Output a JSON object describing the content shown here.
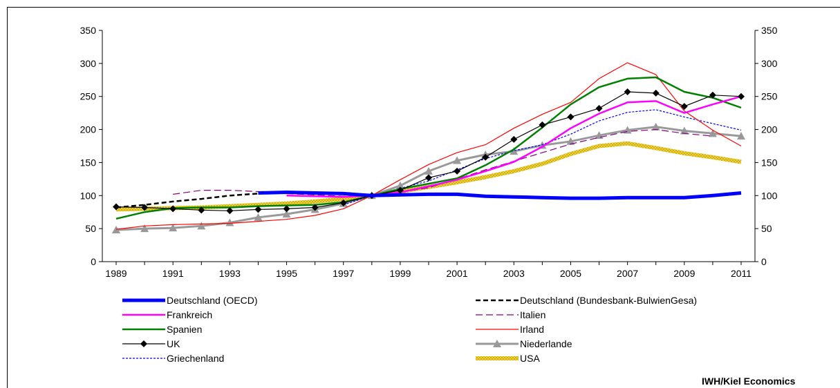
{
  "source": "IWH/Kiel Economics",
  "chart_data": {
    "type": "line",
    "title": "",
    "xlabel": "",
    "ylabel": "",
    "ylim": [
      0,
      350
    ],
    "yticks": [
      0,
      50,
      100,
      150,
      200,
      250,
      300,
      350
    ],
    "xlim": [
      1989,
      2011
    ],
    "xtick_labels": [
      "1989",
      "1991",
      "1993",
      "1995",
      "1997",
      "1999",
      "2001",
      "2003",
      "2005",
      "2007",
      "2009",
      "2011"
    ],
    "x": [
      1989,
      1990,
      1991,
      1992,
      1993,
      1994,
      1995,
      1996,
      1997,
      1998,
      1999,
      2000,
      2001,
      2002,
      2003,
      2004,
      2005,
      2006,
      2007,
      2008,
      2009,
      2010,
      2011
    ],
    "legend_position": "bottom",
    "series": [
      {
        "name": "Deutschland (OECD)",
        "color": "#0000ff",
        "style": "thick",
        "x": [
          1994,
          1995,
          1996,
          1997,
          1998,
          1999,
          2000,
          2001,
          2002,
          2003,
          2004,
          2005,
          2006,
          2007,
          2008,
          2009,
          2010,
          2011
        ],
        "values": [
          104,
          105,
          104,
          103,
          100,
          101,
          102,
          102,
          99,
          98,
          97,
          96,
          96,
          97,
          97,
          97,
          100,
          104
        ]
      },
      {
        "name": "Deutschland (Bundesbank-BulwienGesa)",
        "color": "#000000",
        "style": "dashed",
        "x": [
          1989,
          1990,
          1991,
          1992,
          1993,
          1994,
          1995,
          1996,
          1997,
          1998
        ],
        "values": [
          82,
          86,
          91,
          95,
          100,
          103,
          104,
          105,
          102,
          100
        ]
      },
      {
        "name": "Frankreich",
        "color": "#ff00ff",
        "style": "solid",
        "x": [
          1995,
          1996,
          1997,
          1998,
          1999,
          2000,
          2001,
          2002,
          2003,
          2004,
          2005,
          2006,
          2007,
          2008,
          2009,
          2010,
          2011
        ],
        "values": [
          100,
          99,
          98,
          100,
          105,
          114,
          124,
          137,
          151,
          174,
          202,
          224,
          241,
          243,
          225,
          238,
          250
        ]
      },
      {
        "name": "Italien",
        "color": "#800080",
        "style": "dashdot",
        "x": [
          1991,
          1992,
          1993,
          1994,
          1995,
          1996,
          1997,
          1998,
          1999,
          2000,
          2001,
          2002,
          2003,
          2004,
          2005,
          2006,
          2007,
          2008,
          2009,
          2010
        ],
        "values": [
          102,
          108,
          108,
          106,
          103,
          101,
          99,
          100,
          105,
          112,
          125,
          139,
          152,
          165,
          178,
          188,
          197,
          200,
          194,
          190
        ]
      },
      {
        "name": "Spanien",
        "color": "#008000",
        "style": "solid",
        "x": [
          1989,
          1990,
          1991,
          1992,
          1993,
          1994,
          1995,
          1996,
          1997,
          1998,
          1999,
          2000,
          2001,
          2002,
          2003,
          2004,
          2005,
          2006,
          2007,
          2008,
          2009,
          2010,
          2011
        ],
        "values": [
          65,
          75,
          81,
          82,
          82,
          84,
          85,
          86,
          90,
          100,
          110,
          118,
          126,
          146,
          170,
          203,
          238,
          264,
          277,
          279,
          257,
          248,
          233
        ]
      },
      {
        "name": "Irland",
        "color": "#ff0000",
        "style": "thin",
        "x": [
          1989,
          1990,
          1991,
          1992,
          1993,
          1994,
          1995,
          1996,
          1997,
          1998,
          1999,
          2000,
          2001,
          2002,
          2003,
          2004,
          2005,
          2006,
          2007,
          2008,
          2009,
          2010,
          2011
        ],
        "values": [
          49,
          54,
          56,
          57,
          58,
          61,
          64,
          70,
          80,
          100,
          124,
          147,
          165,
          177,
          202,
          223,
          241,
          277,
          301,
          283,
          228,
          199,
          175
        ]
      },
      {
        "name": "UK",
        "color": "#000000",
        "style": "diamond",
        "x": [
          1989,
          1990,
          1991,
          1992,
          1993,
          1994,
          1995,
          1996,
          1997,
          1998,
          1999,
          2000,
          2001,
          2002,
          2003,
          2004,
          2005,
          2006,
          2007,
          2008,
          2009,
          2010,
          2011
        ],
        "values": [
          83,
          82,
          80,
          78,
          77,
          79,
          80,
          82,
          89,
          100,
          108,
          127,
          137,
          158,
          185,
          207,
          219,
          232,
          257,
          255,
          235,
          252,
          250
        ]
      },
      {
        "name": "Niederlande",
        "color": "#999999",
        "style": "triangle",
        "x": [
          1989,
          1990,
          1991,
          1992,
          1993,
          1994,
          1995,
          1996,
          1997,
          1998,
          1999,
          2000,
          2001,
          2002,
          2003,
          2004,
          2005,
          2006,
          2007,
          2008,
          2009,
          2010,
          2011
        ],
        "values": [
          48,
          50,
          51,
          54,
          59,
          67,
          72,
          79,
          88,
          100,
          115,
          137,
          153,
          162,
          167,
          176,
          182,
          191,
          199,
          204,
          198,
          194,
          190
        ]
      },
      {
        "name": "Griechenland",
        "color": "#0000ff",
        "style": "dotted",
        "x": [
          1997,
          1998,
          1999,
          2000,
          2001,
          2002,
          2003,
          2004,
          2005,
          2006,
          2007,
          2008,
          2009,
          2010,
          2011
        ],
        "values": [
          86,
          100,
          111,
          122,
          139,
          156,
          168,
          177,
          193,
          213,
          226,
          230,
          219,
          209,
          199
        ]
      },
      {
        "name": "USA",
        "color": "#f5dc50",
        "style": "hatched",
        "x": [
          1989,
          1990,
          1991,
          1992,
          1993,
          1994,
          1995,
          1996,
          1997,
          1998,
          1999,
          2000,
          2001,
          2002,
          2003,
          2004,
          2005,
          2006,
          2007,
          2008,
          2009,
          2010,
          2011
        ],
        "values": [
          79,
          80,
          81,
          82,
          84,
          86,
          88,
          91,
          95,
          100,
          106,
          113,
          120,
          128,
          137,
          148,
          163,
          175,
          179,
          172,
          164,
          158,
          151
        ]
      }
    ]
  }
}
